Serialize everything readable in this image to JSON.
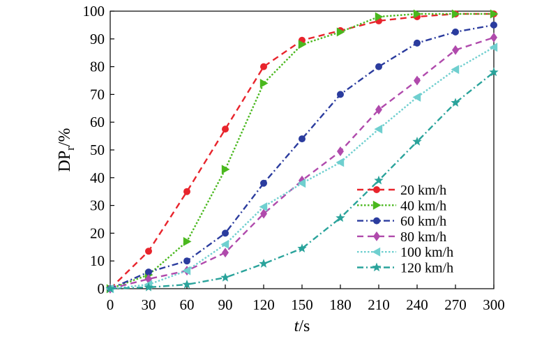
{
  "chart_data": {
    "type": "line",
    "x": [
      0,
      30,
      60,
      90,
      120,
      150,
      180,
      210,
      240,
      270,
      300
    ],
    "xlim": [
      0,
      300
    ],
    "ylim": [
      0,
      100
    ],
    "xticks": [
      0,
      30,
      60,
      90,
      120,
      150,
      180,
      210,
      240,
      270,
      300
    ],
    "yticks": [
      0,
      10,
      20,
      30,
      40,
      50,
      60,
      70,
      80,
      90,
      100
    ],
    "xlabel": {
      "italic": "t",
      "rest": "/s"
    },
    "ylabel": {
      "main": "DP",
      "sub": "r",
      "rest": "/%"
    },
    "legend_position": "lower-right",
    "grid": false,
    "series": [
      {
        "name": "20 km/h",
        "color": "#e8242c",
        "dash": "dashed",
        "marker": "circle",
        "values": [
          0,
          13.5,
          35,
          57.5,
          80,
          89.5,
          93,
          96.5,
          98,
          99,
          99
        ]
      },
      {
        "name": "40 km/h",
        "color": "#4ab81e",
        "dash": "dotted",
        "marker": "triangle-right",
        "values": [
          0,
          5,
          17,
          43,
          74,
          88,
          92.5,
          98,
          99,
          99,
          99
        ]
      },
      {
        "name": "60 km/h",
        "color": "#2b3c9e",
        "dash": "dashdot",
        "marker": "circle",
        "values": [
          0,
          6,
          10,
          20,
          38,
          54,
          70,
          80,
          88.5,
          92.5,
          95
        ]
      },
      {
        "name": "80 km/h",
        "color": "#b04aac",
        "dash": "dashed",
        "marker": "diamond",
        "values": [
          0,
          3.5,
          6.5,
          13,
          27,
          39,
          49.5,
          64.5,
          75,
          86,
          90.5
        ]
      },
      {
        "name": "100 km/h",
        "color": "#6fcfcf",
        "dash": "dotted",
        "marker": "triangle-left",
        "values": [
          0,
          1.5,
          6.5,
          16,
          29.5,
          38,
          45.5,
          57.5,
          69,
          79,
          87
        ]
      },
      {
        "name": "120 km/h",
        "color": "#2aa39b",
        "dash": "dashdot",
        "marker": "star",
        "values": [
          0,
          0.5,
          1.5,
          4,
          9,
          14.5,
          25.5,
          39,
          53,
          67,
          78
        ]
      }
    ]
  }
}
